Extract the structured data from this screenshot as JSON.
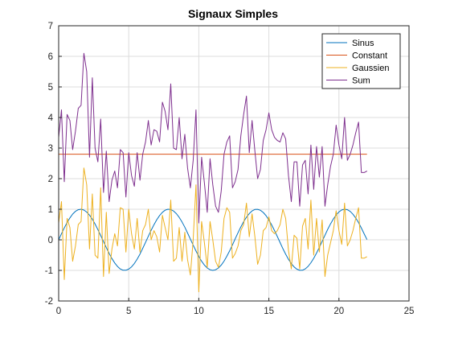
{
  "chart_data": {
    "type": "line",
    "title": "Signaux Simples",
    "xlabel": "",
    "ylabel": "",
    "xlim": [
      0,
      25
    ],
    "ylim": [
      -2,
      7
    ],
    "xticks": [
      0,
      5,
      10,
      15,
      20,
      25
    ],
    "yticks": [
      -2,
      -1,
      0,
      1,
      2,
      3,
      4,
      5,
      6,
      7
    ],
    "grid": true,
    "legend_position": "top-right",
    "x": [
      0.0,
      0.2,
      0.4,
      0.6,
      0.8,
      1.0,
      1.2,
      1.4,
      1.6,
      1.8,
      2.0,
      2.2,
      2.4,
      2.6,
      2.8,
      3.0,
      3.2,
      3.4,
      3.6,
      3.8,
      4.0,
      4.2,
      4.4,
      4.6,
      4.8,
      5.0,
      5.2,
      5.4,
      5.6,
      5.8,
      6.0,
      6.2,
      6.4,
      6.6,
      6.8,
      7.0,
      7.2,
      7.4,
      7.6,
      7.8,
      8.0,
      8.2,
      8.4,
      8.6,
      8.8,
      9.0,
      9.2,
      9.4,
      9.6,
      9.8,
      10.0,
      10.2,
      10.4,
      10.6,
      10.8,
      11.0,
      11.2,
      11.4,
      11.6,
      11.8,
      12.0,
      12.2,
      12.4,
      12.6,
      12.8,
      13.0,
      13.2,
      13.4,
      13.6,
      13.8,
      14.0,
      14.2,
      14.4,
      14.6,
      14.8,
      15.0,
      15.2,
      15.4,
      15.6,
      15.8,
      16.0,
      16.2,
      16.4,
      16.6,
      16.8,
      17.0,
      17.2,
      17.4,
      17.6,
      17.8,
      18.0,
      18.2,
      18.4,
      18.6,
      18.8,
      19.0,
      19.2,
      19.4,
      19.6,
      19.8,
      20.0,
      20.2,
      20.4,
      20.6,
      20.8,
      21.0,
      21.2,
      21.4,
      21.6,
      21.8,
      22.0
    ],
    "series": [
      {
        "name": "Sinus",
        "color": "#0072BD",
        "values": [
          0.0,
          0.199,
          0.389,
          0.565,
          0.717,
          0.841,
          0.932,
          0.985,
          1.0,
          0.974,
          0.909,
          0.808,
          0.675,
          0.516,
          0.335,
          0.141,
          -0.058,
          -0.256,
          -0.443,
          -0.612,
          -0.757,
          -0.872,
          -0.952,
          -0.994,
          -0.996,
          -0.959,
          -0.883,
          -0.773,
          -0.631,
          -0.465,
          -0.279,
          -0.083,
          0.117,
          0.312,
          0.494,
          0.657,
          0.794,
          0.899,
          0.968,
          0.999,
          0.989,
          0.941,
          0.855,
          0.734,
          0.585,
          0.412,
          0.223,
          0.025,
          -0.174,
          -0.366,
          -0.544,
          -0.699,
          -0.827,
          -0.922,
          -0.98,
          -1.0,
          -0.979,
          -0.92,
          -0.825,
          -0.697,
          -0.537,
          -0.358,
          -0.166,
          0.033,
          0.231,
          0.42,
          0.592,
          0.739,
          0.859,
          0.944,
          0.991,
          0.998,
          0.966,
          0.895,
          0.789,
          0.65,
          0.487,
          0.302,
          0.108,
          -0.091,
          -0.288,
          -0.472,
          -0.637,
          -0.777,
          -0.887,
          -0.961,
          -0.998,
          -0.994,
          -0.951,
          -0.869,
          -0.751,
          -0.605,
          -0.433,
          -0.246,
          -0.05,
          0.149,
          0.343,
          0.522,
          0.68,
          0.811,
          0.913,
          0.975,
          0.999,
          0.983,
          0.93,
          0.837,
          0.712,
          0.562,
          0.385,
          0.195,
          0.009
        ]
      },
      {
        "name": "Constant",
        "color": "#D95319",
        "values": [
          2.8,
          2.8,
          2.8,
          2.8,
          2.8,
          2.8,
          2.8,
          2.8,
          2.8,
          2.8,
          2.8,
          2.8,
          2.8,
          2.8,
          2.8,
          2.8,
          2.8,
          2.8,
          2.8,
          2.8,
          2.8,
          2.8,
          2.8,
          2.8,
          2.8,
          2.8,
          2.8,
          2.8,
          2.8,
          2.8,
          2.8,
          2.8,
          2.8,
          2.8,
          2.8,
          2.8,
          2.8,
          2.8,
          2.8,
          2.8,
          2.8,
          2.8,
          2.8,
          2.8,
          2.8,
          2.8,
          2.8,
          2.8,
          2.8,
          2.8,
          2.8,
          2.8,
          2.8,
          2.8,
          2.8,
          2.8,
          2.8,
          2.8,
          2.8,
          2.8,
          2.8,
          2.8,
          2.8,
          2.8,
          2.8,
          2.8,
          2.8,
          2.8,
          2.8,
          2.8,
          2.8,
          2.8,
          2.8,
          2.8,
          2.8,
          2.8,
          2.8,
          2.8,
          2.8,
          2.8,
          2.8,
          2.8,
          2.8,
          2.8,
          2.8,
          2.8,
          2.8,
          2.8,
          2.8,
          2.8,
          2.8,
          2.8,
          2.8,
          2.8,
          2.8,
          2.8,
          2.8,
          2.8,
          2.8,
          2.8,
          2.8,
          2.8,
          2.8,
          2.8,
          2.8,
          2.8,
          2.8,
          2.8,
          2.8,
          2.8,
          2.8
        ]
      },
      {
        "name": "Gaussien",
        "color": "#EDB120",
        "values": [
          0.55,
          1.25,
          -1.3,
          0.7,
          0.4,
          -0.7,
          -0.2,
          0.5,
          0.6,
          2.35,
          1.8,
          -0.3,
          1.5,
          -0.5,
          -0.6,
          1.7,
          -1.2,
          0.9,
          -1.1,
          -0.3,
          0.2,
          -0.2,
          1.05,
          1.0,
          -0.4,
          1.0,
          0.2,
          -0.3,
          0.7,
          -0.4,
          0.3,
          0.5,
          1.0,
          0.0,
          0.3,
          0.1,
          -0.4,
          0.8,
          0.4,
          0.0,
          1.3,
          -0.7,
          -0.6,
          0.4,
          -0.7,
          0.25,
          -0.65,
          -1.15,
          0.0,
          1.8,
          -1.7,
          0.6,
          -0.1,
          -0.9,
          0.6,
          0.0,
          -0.7,
          -0.9,
          -0.4,
          0.7,
          1.05,
          0.9,
          -0.6,
          -0.45,
          -0.2,
          0.3,
          0.5,
          1.2,
          0.1,
          0.85,
          0.1,
          -0.8,
          -0.5,
          0.3,
          0.4,
          0.75,
          0.3,
          0.2,
          0.3,
          0.5,
          1.0,
          0.7,
          -0.35,
          -0.95,
          0.15,
          0.05,
          -0.95,
          0.45,
          0.7,
          -0.3,
          1.3,
          -0.5,
          0.7,
          -0.4,
          0.65,
          -1.2,
          -0.5,
          -0.1,
          0.3,
          0.95,
          0.3,
          -0.15,
          1.2,
          -0.2,
          0.0,
          0.3,
          0.7,
          1.05,
          -0.6,
          -0.6,
          -0.55
        ]
      },
      {
        "name": "Sum",
        "color": "#7E2F8E",
        "values": [
          3.35,
          4.25,
          1.9,
          4.1,
          3.9,
          2.95,
          3.55,
          4.3,
          4.4,
          6.1,
          5.5,
          2.7,
          5.3,
          3.0,
          2.55,
          3.95,
          1.55,
          2.9,
          1.25,
          1.95,
          2.25,
          1.7,
          2.95,
          2.85,
          1.4,
          2.85,
          2.1,
          1.75,
          2.85,
          1.95,
          2.8,
          3.2,
          3.9,
          3.1,
          3.6,
          3.55,
          3.2,
          4.5,
          4.2,
          3.6,
          5.1,
          3.0,
          2.95,
          4.0,
          2.65,
          3.45,
          2.35,
          1.7,
          2.6,
          4.25,
          0.55,
          2.7,
          1.85,
          0.9,
          2.65,
          1.8,
          1.1,
          0.9,
          1.6,
          2.8,
          3.2,
          3.4,
          1.7,
          1.9,
          2.3,
          3.4,
          4.1,
          4.7,
          2.85,
          3.9,
          2.9,
          2.0,
          2.3,
          3.25,
          3.6,
          4.15,
          3.6,
          3.35,
          3.25,
          3.2,
          3.5,
          3.3,
          2.1,
          1.25,
          2.55,
          2.55,
          1.1,
          2.45,
          2.6,
          1.5,
          3.1,
          1.65,
          3.05,
          2.05,
          3.05,
          1.1,
          1.8,
          2.4,
          2.8,
          3.75,
          3.1,
          2.65,
          4.0,
          2.6,
          2.8,
          3.1,
          3.5,
          3.85,
          2.2,
          2.2,
          2.25
        ]
      }
    ]
  }
}
